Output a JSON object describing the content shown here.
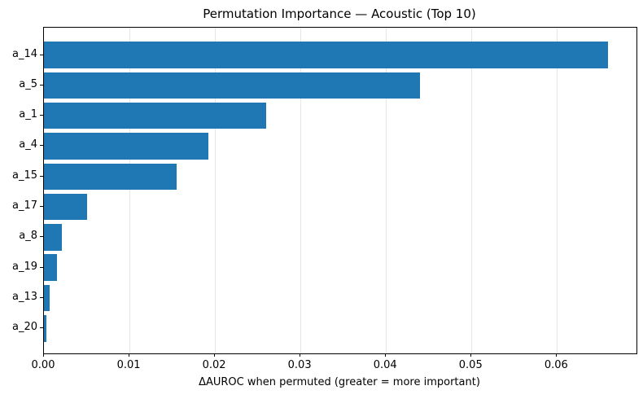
{
  "chart_data": {
    "type": "bar",
    "orientation": "horizontal",
    "title": "Permutation Importance — Acoustic (Top 10)",
    "xlabel": "ΔAUROC when permuted (greater = more important)",
    "categories": [
      "a_14",
      "a_5",
      "a_1",
      "a_4",
      "a_15",
      "a_17",
      "a_8",
      "a_19",
      "a_13",
      "a_20"
    ],
    "values": [
      0.066,
      0.044,
      0.026,
      0.0192,
      0.0155,
      0.005,
      0.0021,
      0.0015,
      0.0007,
      0.0003
    ],
    "xlim": [
      0,
      0.0693
    ],
    "xtick_values": [
      0,
      0.01,
      0.02,
      0.03,
      0.04,
      0.05,
      0.06
    ],
    "xtick_labels": [
      "0.00",
      "0.01",
      "0.02",
      "0.03",
      "0.04",
      "0.05",
      "0.06"
    ],
    "grid": "vertical-only",
    "legend_position": "none",
    "bar_color": "#1f77b4",
    "grid_color": "#e6e6e6",
    "spine_color": "#000000"
  }
}
